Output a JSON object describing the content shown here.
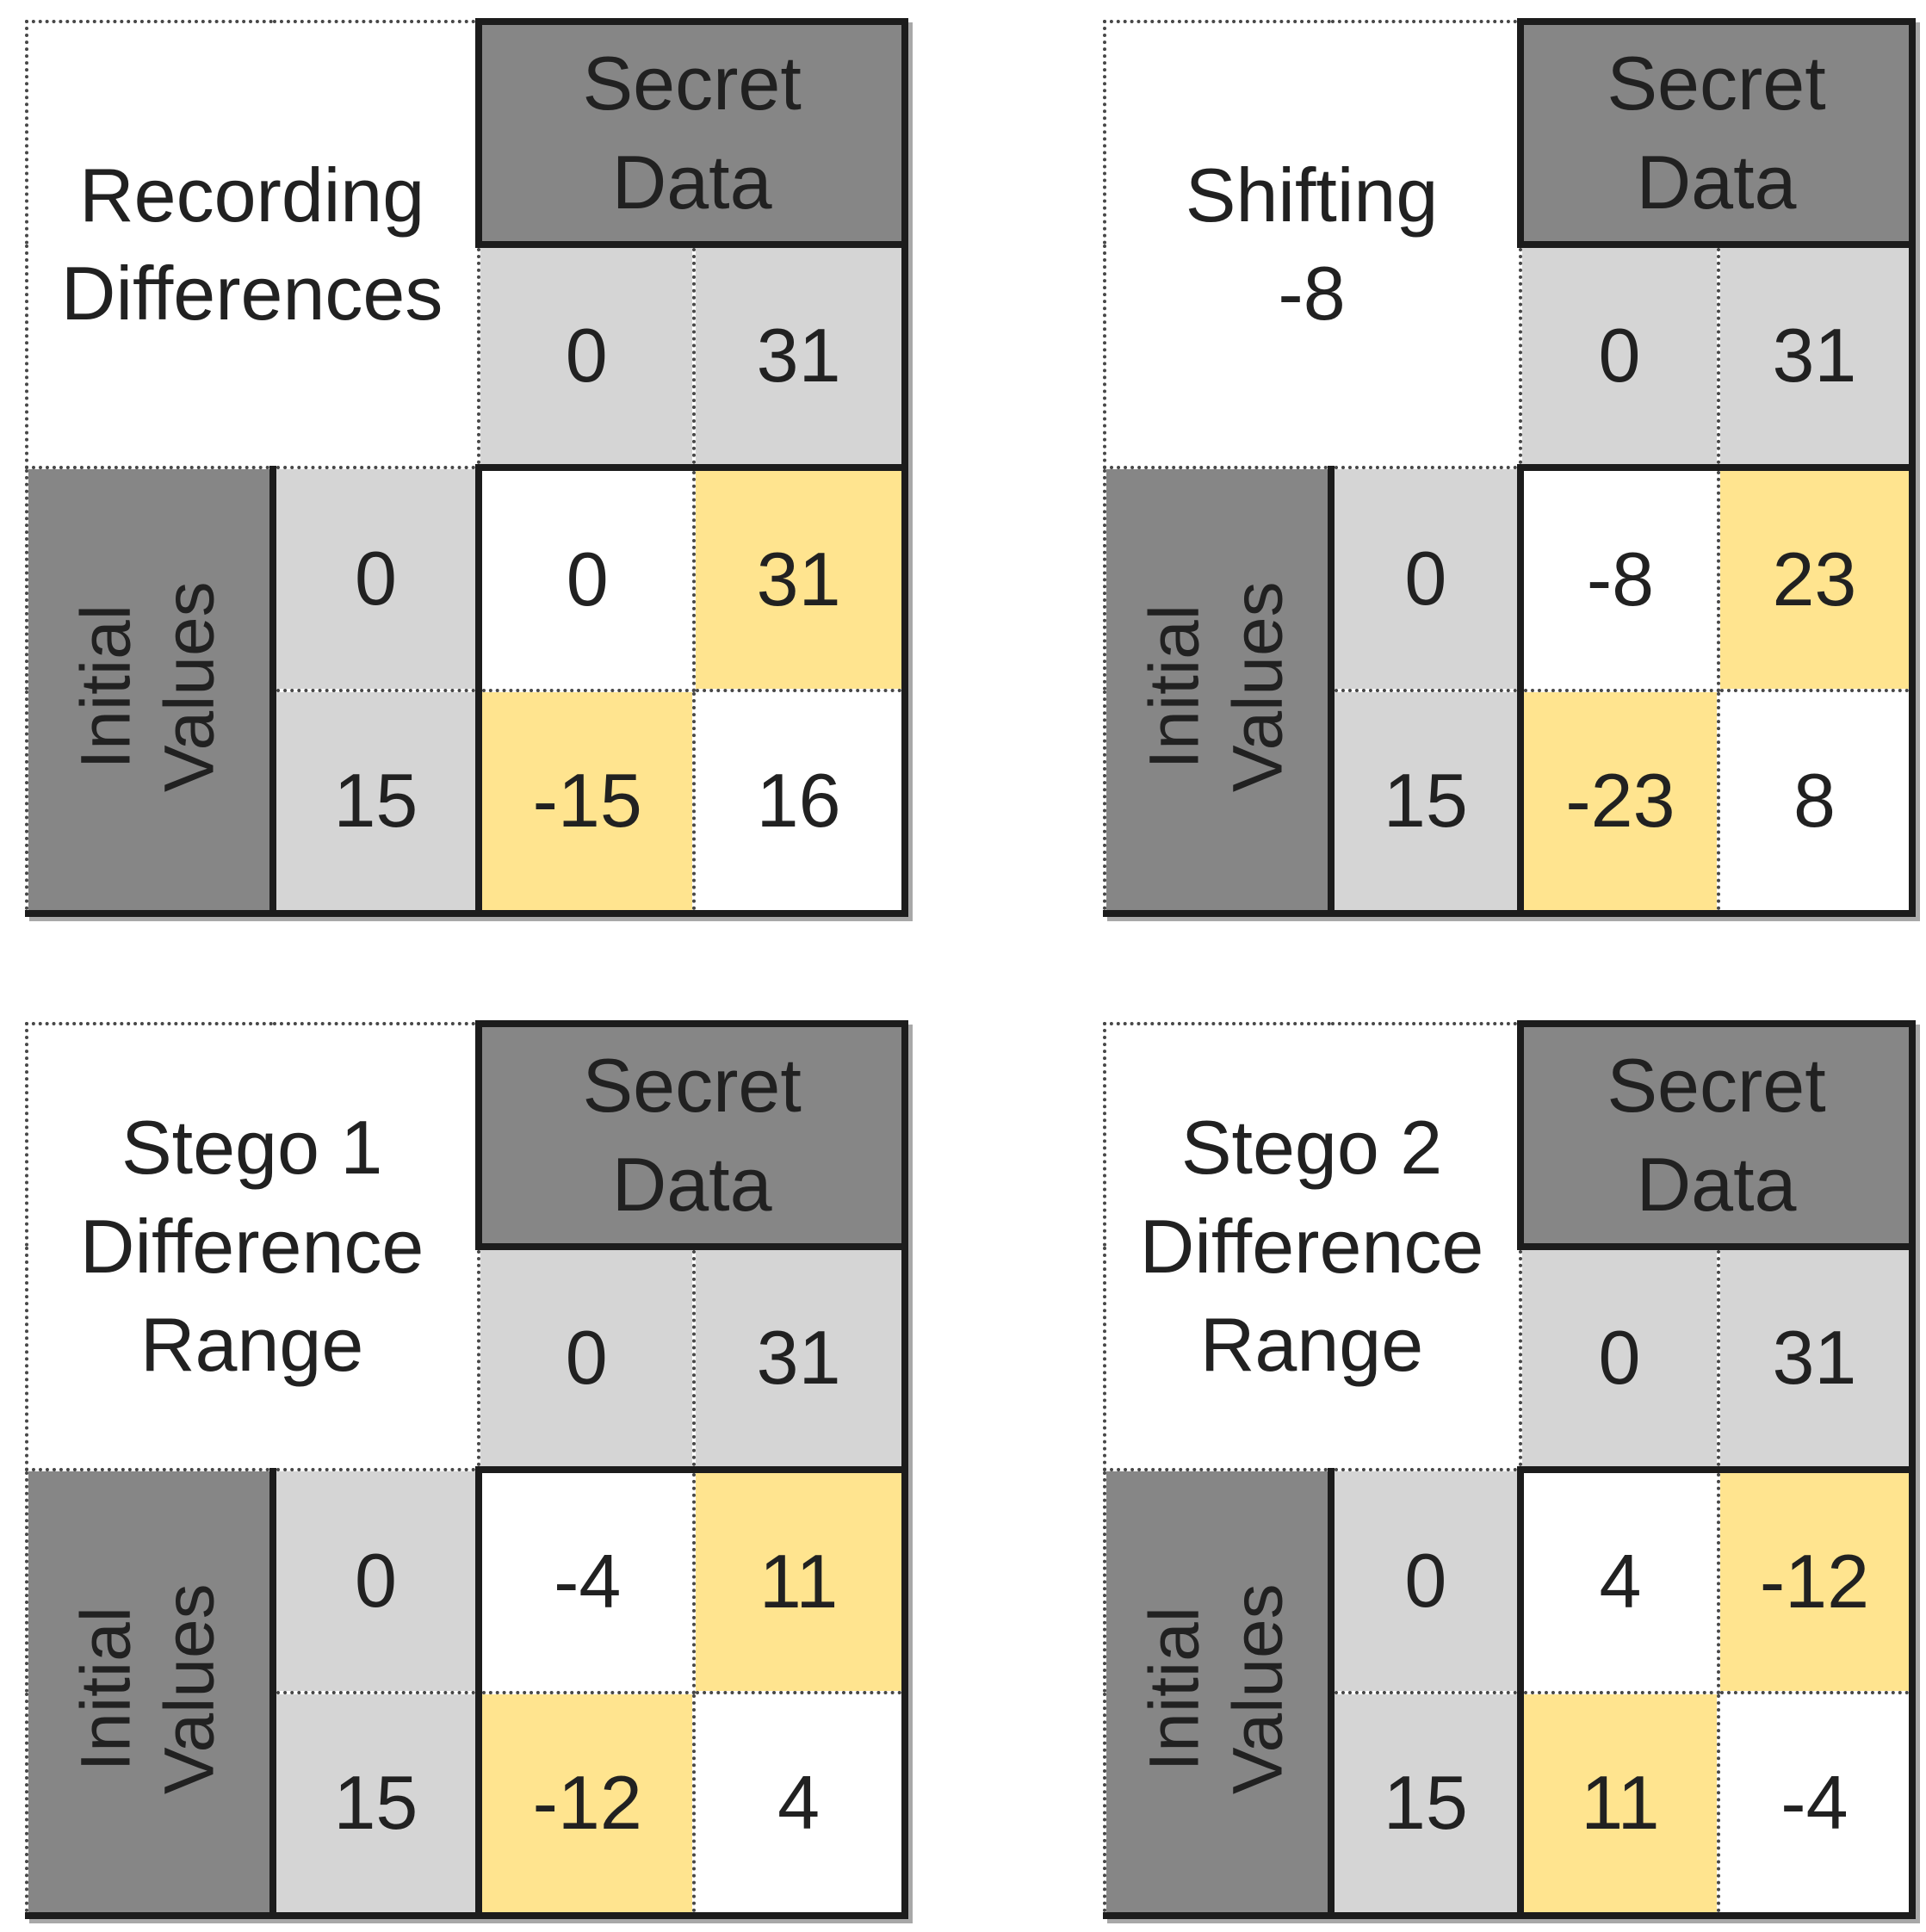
{
  "colors": {
    "header_dark": "#868686",
    "header_light": "#d5d5d5",
    "highlight_yellow": "#ffe48f",
    "cell_white": "#ffffff",
    "text": "#212121",
    "border_solid": "#1c1c1c",
    "border_dotted": "#474747"
  },
  "shared": {
    "secret_data_label": [
      "Secret",
      "Data"
    ],
    "initial_values_label": [
      "Initial",
      "Values"
    ],
    "secret_values": [
      "0",
      "31"
    ],
    "initial_values": [
      "0",
      "15"
    ]
  },
  "tables": [
    {
      "id": "recording-differences",
      "title_lines": [
        "Recording",
        "Differences"
      ],
      "cells": [
        [
          "0",
          "31"
        ],
        [
          "-15",
          "16"
        ]
      ],
      "highlight": [
        [
          false,
          true
        ],
        [
          true,
          false
        ]
      ]
    },
    {
      "id": "shifting-minus-8",
      "title_lines": [
        "Shifting",
        "-8"
      ],
      "cells": [
        [
          "-8",
          "23"
        ],
        [
          "-23",
          "8"
        ]
      ],
      "highlight": [
        [
          false,
          true
        ],
        [
          true,
          false
        ]
      ]
    },
    {
      "id": "stego-1-difference-range",
      "title_lines": [
        "Stego 1",
        "Difference",
        "Range"
      ],
      "cells": [
        [
          "-4",
          "11"
        ],
        [
          "-12",
          "4"
        ]
      ],
      "highlight": [
        [
          false,
          true
        ],
        [
          true,
          false
        ]
      ]
    },
    {
      "id": "stego-2-difference-range",
      "title_lines": [
        "Stego 2",
        "Difference",
        "Range"
      ],
      "cells": [
        [
          "4",
          "-12"
        ],
        [
          "11",
          "-4"
        ]
      ],
      "highlight": [
        [
          false,
          true
        ],
        [
          true,
          false
        ]
      ]
    }
  ]
}
